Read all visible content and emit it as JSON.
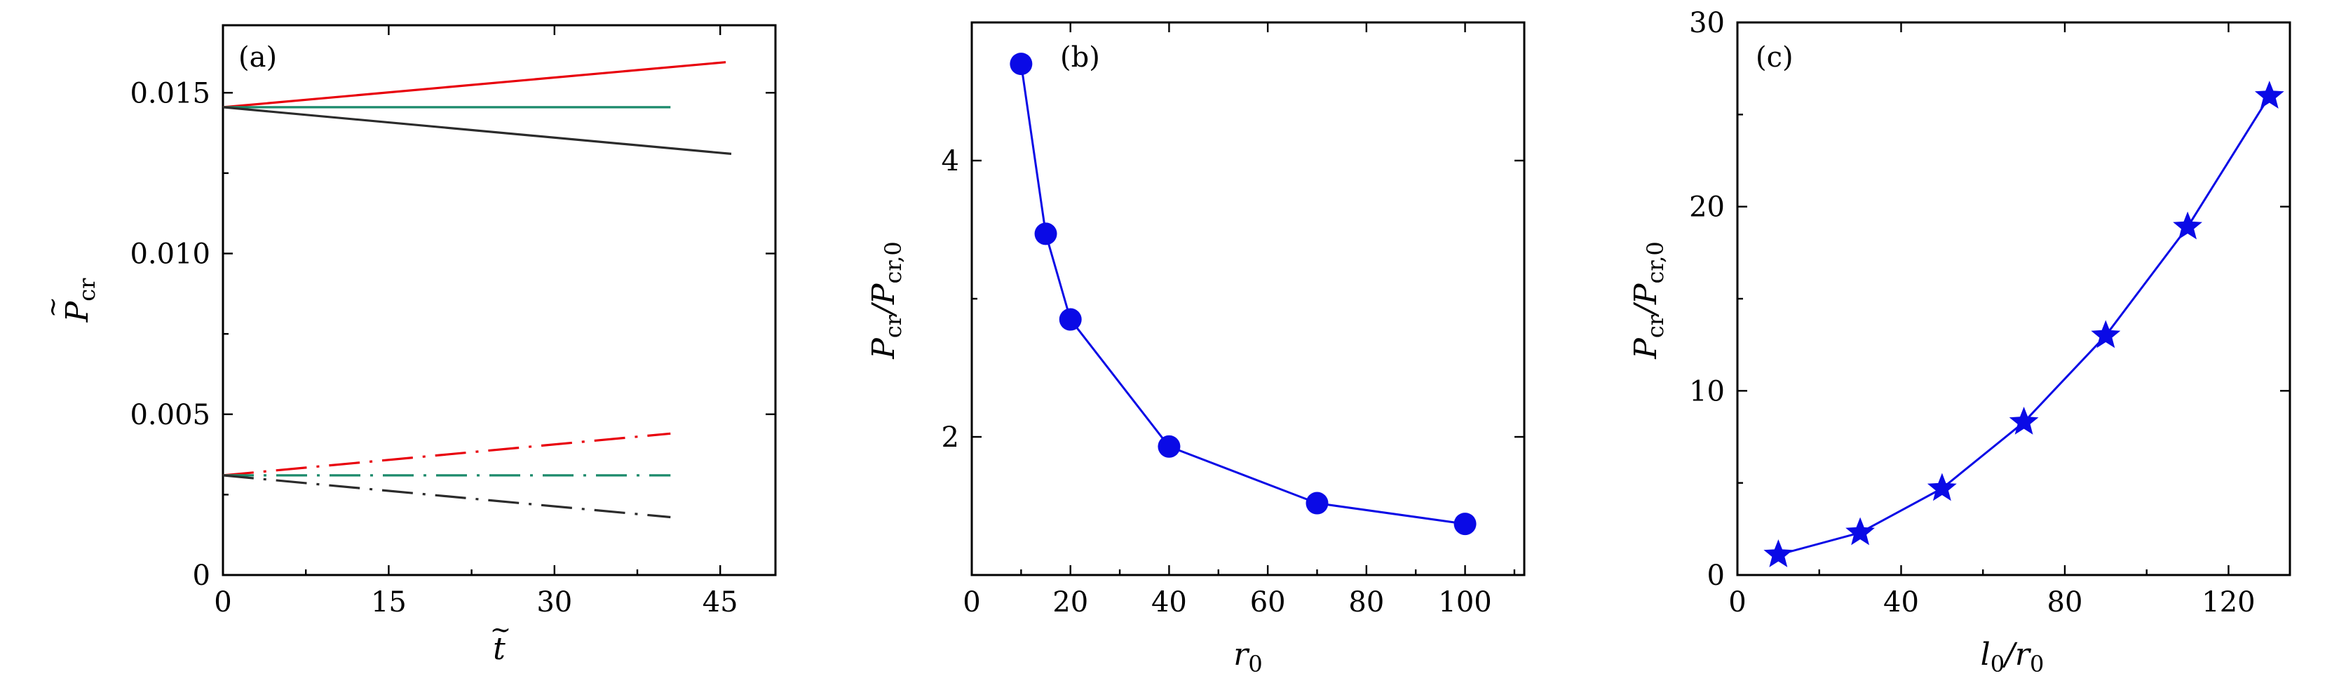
{
  "chart_data": [
    {
      "type": "line",
      "panel_label": "(a)",
      "xlabel": "t̃",
      "ylabel": "P̃cr",
      "xlim": [
        0,
        50
      ],
      "ylim": [
        0,
        0.0171
      ],
      "xticks": [
        0,
        15,
        30,
        45
      ],
      "xtick_labels": [
        "0",
        "15",
        "30",
        "45"
      ],
      "yticks": [
        0,
        0.005,
        0.01,
        0.015
      ],
      "ytick_labels": [
        "0",
        "0.005",
        "0.010",
        "0.015"
      ],
      "grid": false,
      "series": [
        {
          "color": "#e8000b",
          "dash": "solid",
          "x": [
            0,
            45.5
          ],
          "y": [
            0.01455,
            0.01595
          ]
        },
        {
          "color": "#1b8a6b",
          "dash": "solid",
          "x": [
            0,
            40.5
          ],
          "y": [
            0.01455,
            0.01455
          ]
        },
        {
          "color": "#2b2b2b",
          "dash": "solid",
          "x": [
            0,
            46.0
          ],
          "y": [
            0.01455,
            0.0131
          ]
        },
        {
          "color": "#e8000b",
          "dash": "dashdot",
          "x": [
            0,
            40.5
          ],
          "y": [
            0.0031,
            0.0044
          ]
        },
        {
          "color": "#1b8a6b",
          "dash": "dashdot",
          "x": [
            0,
            40.5
          ],
          "y": [
            0.0031,
            0.0031
          ]
        },
        {
          "color": "#2b2b2b",
          "dash": "dashdot",
          "x": [
            0,
            40.5
          ],
          "y": [
            0.0031,
            0.0018
          ]
        }
      ]
    },
    {
      "type": "line",
      "panel_label": "(b)",
      "xlabel": "r0",
      "ylabel": "P̃cr/P̃cr,0",
      "xlim": [
        0,
        112
      ],
      "ylim": [
        1.0,
        5.0
      ],
      "xticks": [
        0,
        20,
        40,
        60,
        80,
        100
      ],
      "xtick_labels": [
        "0",
        "20",
        "40",
        "60",
        "80",
        "100"
      ],
      "yticks": [
        2,
        4
      ],
      "ytick_labels": [
        "2",
        "4"
      ],
      "grid": false,
      "marker": "circle",
      "color": "#0a0ae6",
      "series": [
        {
          "x": [
            10,
            15,
            20,
            40,
            70,
            100
          ],
          "y": [
            4.7,
            3.47,
            2.85,
            1.93,
            1.52,
            1.37
          ]
        }
      ]
    },
    {
      "type": "line",
      "panel_label": "(c)",
      "xlabel": "l0/r0",
      "ylabel": "P̃cr/P̃cr,0",
      "xlim": [
        0,
        135
      ],
      "ylim": [
        0,
        30
      ],
      "xticks": [
        0,
        40,
        80,
        120
      ],
      "xtick_labels": [
        "0",
        "40",
        "80",
        "120"
      ],
      "yticks": [
        0,
        10,
        20,
        30
      ],
      "ytick_labels": [
        "0",
        "10",
        "20",
        "30"
      ],
      "grid": false,
      "marker": "star",
      "color": "#0a0ae6",
      "series": [
        {
          "x": [
            10,
            30,
            50,
            70,
            90,
            110,
            130
          ],
          "y": [
            1.1,
            2.3,
            4.7,
            8.3,
            13.0,
            18.9,
            26.0
          ]
        }
      ]
    }
  ]
}
